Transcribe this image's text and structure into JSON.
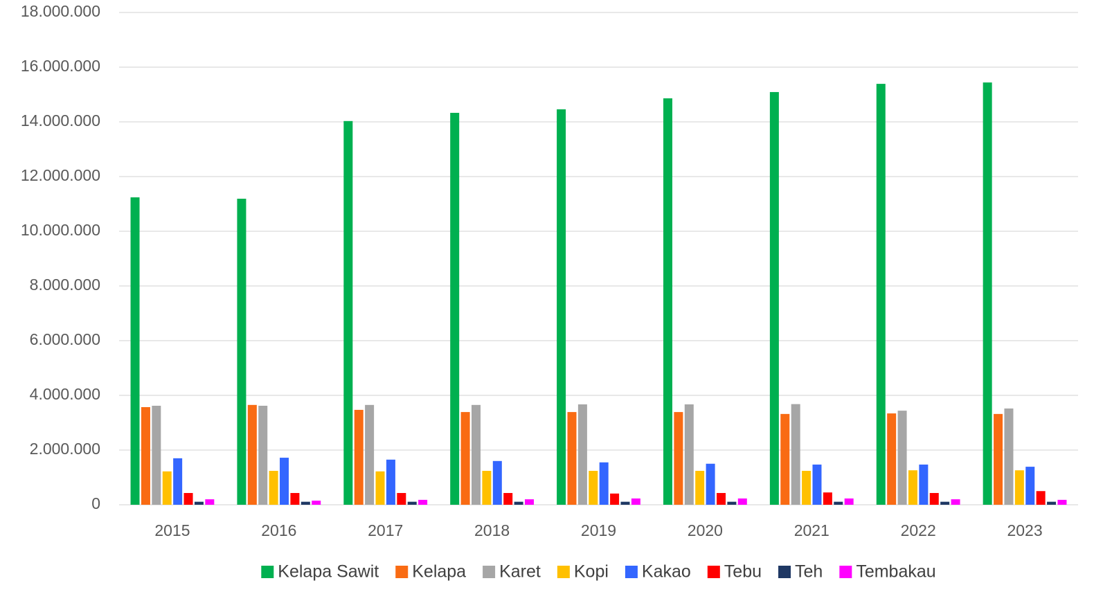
{
  "chart_data": {
    "type": "bar",
    "categories": [
      "2015",
      "2016",
      "2017",
      "2018",
      "2019",
      "2020",
      "2021",
      "2022",
      "2023"
    ],
    "series": [
      {
        "name": "Kelapa Sawit",
        "color": "#00b050",
        "values": [
          11240000,
          11190000,
          14030000,
          14330000,
          14460000,
          14860000,
          15090000,
          15390000,
          15440000
        ]
      },
      {
        "name": "Kelapa",
        "color": "#f96b13",
        "values": [
          3570000,
          3650000,
          3470000,
          3390000,
          3390000,
          3390000,
          3320000,
          3340000,
          3320000
        ]
      },
      {
        "name": "Karet",
        "color": "#a6a6a6",
        "values": [
          3620000,
          3620000,
          3650000,
          3650000,
          3670000,
          3670000,
          3680000,
          3440000,
          3520000
        ]
      },
      {
        "name": "Kopi",
        "color": "#ffc000",
        "values": [
          1220000,
          1240000,
          1220000,
          1240000,
          1240000,
          1240000,
          1240000,
          1260000,
          1260000
        ]
      },
      {
        "name": "Kakao",
        "color": "#3366ff",
        "values": [
          1700000,
          1720000,
          1650000,
          1600000,
          1550000,
          1500000,
          1470000,
          1470000,
          1390000
        ]
      },
      {
        "name": "Tebu",
        "color": "#ff0000",
        "values": [
          430000,
          430000,
          430000,
          430000,
          410000,
          430000,
          450000,
          430000,
          500000
        ]
      },
      {
        "name": "Teh",
        "color": "#1f3864",
        "values": [
          110000,
          110000,
          110000,
          110000,
          110000,
          110000,
          110000,
          110000,
          110000
        ]
      },
      {
        "name": "Tembakau",
        "color": "#ff00ff",
        "values": [
          200000,
          150000,
          180000,
          200000,
          230000,
          230000,
          230000,
          200000,
          180000
        ]
      }
    ],
    "ylim": [
      0,
      18000000
    ],
    "yticks": [
      0,
      {
        "value": 2000000,
        "label": "2.000.000"
      },
      {
        "value": 4000000,
        "label": "4.000.000"
      },
      {
        "value": 6000000,
        "label": "6.000.000"
      },
      {
        "value": 8000000,
        "label": "8.000.000"
      },
      {
        "value": 10000000,
        "label": "10.000.000"
      },
      {
        "value": 12000000,
        "label": "12.000.000"
      },
      {
        "value": 14000000,
        "label": "14.000.000"
      },
      {
        "value": 16000000,
        "label": "16.000.000"
      },
      {
        "value": 18000000,
        "label": "18.000.000"
      }
    ],
    "grid": true,
    "legend": "bottom"
  }
}
